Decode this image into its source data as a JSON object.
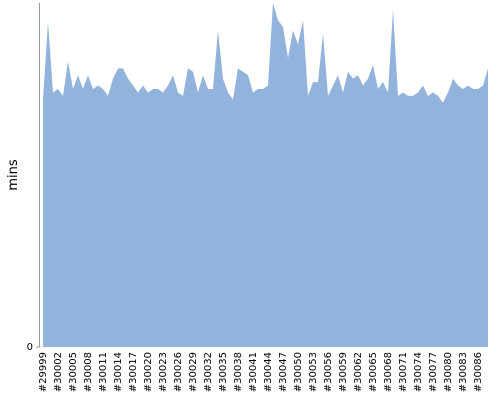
{
  "chart_data": {
    "type": "area",
    "y_label": "mins",
    "categories": [
      "#29999",
      null,
      null,
      "#30002",
      null,
      null,
      "#30005",
      null,
      null,
      "#30008",
      null,
      null,
      "#30011",
      null,
      null,
      "#30014",
      null,
      null,
      "#30017",
      null,
      null,
      "#30020",
      null,
      null,
      "#30023",
      null,
      null,
      "#30026",
      null,
      null,
      "#30029",
      null,
      null,
      "#30032",
      null,
      null,
      "#30035",
      null,
      null,
      "#30038",
      null,
      null,
      "#30041",
      null,
      null,
      "#30044",
      null,
      null,
      "#30047",
      null,
      null,
      "#30050",
      null,
      null,
      "#30053",
      null,
      null,
      "#30056",
      null,
      null,
      "#30059",
      null,
      null,
      "#30062",
      null,
      null,
      "#30065",
      null,
      null,
      "#30068",
      null,
      null,
      "#30071",
      null,
      null,
      "#30074",
      null,
      null,
      "#30077",
      null,
      null,
      "#30080",
      null,
      null,
      "#30083",
      null,
      null,
      "#30086",
      null,
      null
    ],
    "values": [
      72,
      94.5,
      74,
      75,
      73,
      83,
      75,
      79,
      75,
      79,
      75,
      76,
      75,
      73,
      78,
      81,
      81,
      78,
      76,
      74,
      76,
      74,
      75,
      75,
      74,
      76,
      79,
      74,
      73,
      81,
      80,
      74,
      79,
      75,
      75,
      92,
      78,
      74,
      72,
      81,
      80,
      79,
      74,
      75,
      75,
      76,
      100,
      95,
      93,
      84,
      92,
      88,
      95,
      73,
      77,
      77,
      91,
      73,
      76,
      79,
      74,
      80,
      78,
      79,
      76,
      78,
      82,
      75,
      77,
      74,
      98,
      73,
      74,
      73,
      73,
      74,
      76,
      73,
      74,
      73,
      71,
      74,
      78,
      76,
      75,
      76,
      75,
      75,
      76,
      81
    ],
    "color": "#91b3dc",
    "ylim": [
      0,
      100
    ],
    "yticks": [
      0
    ]
  }
}
